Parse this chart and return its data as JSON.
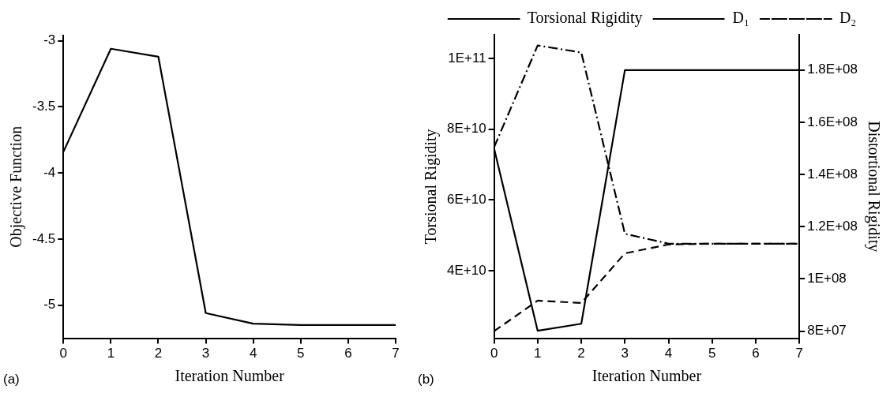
{
  "chart_data": [
    {
      "type": "line",
      "xlabel": "Iteration Number",
      "ylabel": "Objective Function",
      "x": [
        0,
        1,
        2,
        3,
        4,
        5,
        6,
        7
      ],
      "series": [
        {
          "color": "#000000",
          "values": [
            -3.84,
            -3.06,
            -3.12,
            -5.06,
            -5.14,
            -5.15,
            -5.15,
            -5.15
          ]
        }
      ],
      "xlim": [
        0,
        7
      ],
      "xticks": [
        0,
        1,
        2,
        3,
        4,
        5,
        6,
        7
      ],
      "ylim": [
        -5.25,
        -2.96
      ],
      "yticks": [
        -5,
        -4.5,
        -4,
        -3.5,
        -3
      ],
      "grid": false,
      "legend": false,
      "marker": "none",
      "line_style": "solid",
      "annotations": [
        "(a)"
      ]
    },
    {
      "type": "line",
      "xlabel": "Iteration Number",
      "ylabel": "Torsional Rigidity",
      "y2label": "Distortional Rigidity",
      "x": [
        0,
        1,
        2,
        3,
        4,
        5,
        6,
        7
      ],
      "series": [
        {
          "name": "Torsional Rigidity",
          "color": "#000000",
          "line_style": "solid",
          "values": [
            74600000000,
            23000000000,
            25000000000,
            96700000000,
            96700000000,
            96700000000,
            96700000000,
            96700000000
          ]
        },
        {
          "name": "D₁",
          "color": "#000000",
          "line_style": "dashed",
          "axis": "y2",
          "values": [
            80000000,
            91700000,
            90800000,
            109800000,
            113200000,
            113500000,
            113500000,
            113500000
          ]
        },
        {
          "name": "D₂",
          "color": "#000000",
          "line_style": "dashdot",
          "axis": "y2",
          "values": [
            150400000,
            189400000,
            186700000,
            117300000,
            113500000,
            113500000,
            113500000,
            113500000
          ]
        }
      ],
      "xlim": [
        0,
        7
      ],
      "xticks": [
        0,
        1,
        2,
        3,
        4,
        5,
        6,
        7
      ],
      "ylim": [
        20900000000,
        106700000000
      ],
      "yticks": [
        {
          "value": 40000000000,
          "label": "4E+10"
        },
        {
          "value": 60000000000,
          "label": "6E+10"
        },
        {
          "value": 80000000000,
          "label": "8E+10"
        },
        {
          "value": 100000000000,
          "label": "1E+11"
        }
      ],
      "y2lim": [
        77300000,
        193500000
      ],
      "y2ticks": [
        {
          "value": 80000000,
          "label": "8E+07"
        },
        {
          "value": 100000000,
          "label": "1E+08"
        },
        {
          "value": 120000000,
          "label": "1.2E+08"
        },
        {
          "value": 140000000,
          "label": "1.4E+08"
        },
        {
          "value": 160000000,
          "label": "1.6E+08"
        },
        {
          "value": 180000000,
          "label": "1.8E+08"
        }
      ],
      "grid": false,
      "legend": "top",
      "marker": "none",
      "annotations": [
        "(b)"
      ]
    }
  ]
}
